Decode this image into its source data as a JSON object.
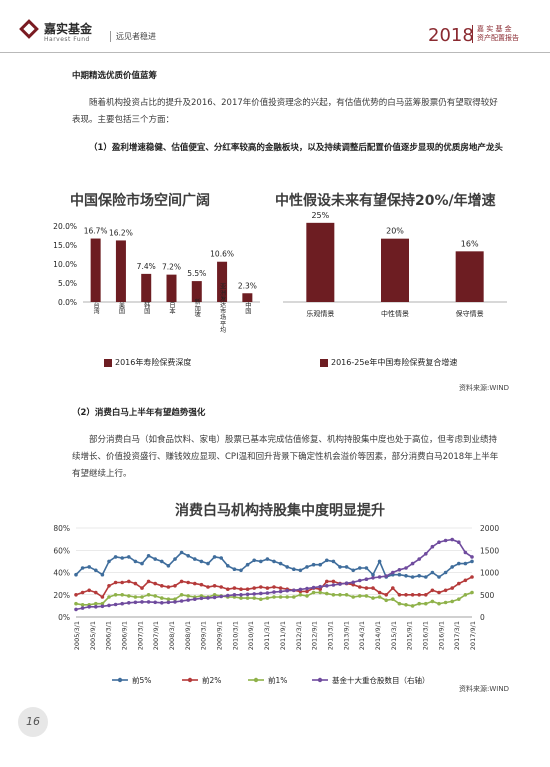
{
  "header": {
    "company_name": "嘉实基金",
    "company_en": "Harvest Fund",
    "slogan": "远见者稳进",
    "year": "2018",
    "report_title_line1": "嘉 实 基 金",
    "report_title_line2": "资产配置报告"
  },
  "body": {
    "section_heading": "中期精选优质价值蓝筹",
    "para1": "随着机构投资占比的提升及2016、2017年价值投资理念的兴起，有估值优势的白马蓝筹股票仍有望取得较好表现。主要包括三个方面：",
    "sub1": "（1）盈利增速稳健、估值便宜、分红率较高的金融板块，以及持续调整后配置价值逐步显现的优质房地产龙头",
    "source1": "资料来源:WIND",
    "sub2": "（2）消费白马上半年有望趋势强化",
    "para2": "部分消费白马（如食品饮料、家电）股票已基本完成估值修复、机构持股集中度也处于高位，但考虑到业绩持续增长、价值投资盛行、赚钱效应显现、CPI温和回升背景下确定性机会溢价等因素，部分消费白马2018年上半年有望继续上行。",
    "source2": "资料来源:WIND",
    "page_number": "16"
  },
  "chart_data": [
    {
      "type": "bar",
      "title": "中国保险市场空间广阔",
      "categories": [
        "台湾",
        "美国",
        "韩国",
        "日本",
        "新加坡",
        "亚洲发达市场平均",
        "中国"
      ],
      "values": [
        16.7,
        16.2,
        7.4,
        7.2,
        5.5,
        10.6,
        2.3
      ],
      "value_labels": [
        "16.7%",
        "16.2%",
        "7.4%",
        "7.2%",
        "5.5%",
        "10.6%",
        "2.3%"
      ],
      "y_ticks": [
        "0.0%",
        "5.0%",
        "10.0%",
        "15.0%",
        "20.0%"
      ],
      "ylim": [
        0,
        20
      ],
      "legend": "2016年寿险保费深度",
      "color": "#6d1d22"
    },
    {
      "type": "bar",
      "title": "中性假设未来有望保持20%/年增速",
      "categories": [
        "乐观情景",
        "中性情景",
        "保守情景"
      ],
      "values": [
        25,
        20,
        16
      ],
      "value_labels": [
        "25%",
        "20%",
        "16%"
      ],
      "ylim": [
        0,
        30
      ],
      "legend": "2016-25e年中国寿险保费复合增速",
      "color": "#6d1d22"
    },
    {
      "type": "line",
      "title": "消费白马机构持股集中度明显提升",
      "x_labels": [
        "2005/3/1",
        "2005/9/1",
        "2006/3/1",
        "2006/9/1",
        "2007/3/1",
        "2007/9/1",
        "2008/3/1",
        "2008/9/1",
        "2009/3/1",
        "2009/9/1",
        "2010/3/1",
        "2010/9/1",
        "2011/3/1",
        "2011/9/1",
        "2012/3/1",
        "2012/9/1",
        "2013/3/1",
        "2013/9/1",
        "2014/3/1",
        "2014/9/1",
        "2015/3/1",
        "2015/9/1",
        "2016/3/1",
        "2016/9/1",
        "2017/3/1",
        "2017/9/1"
      ],
      "y_left_ticks": [
        "0%",
        "20%",
        "40%",
        "60%",
        "80%"
      ],
      "ylim_left": [
        0,
        80
      ],
      "y_right_ticks": [
        "0",
        "500",
        "1000",
        "1500",
        "2000"
      ],
      "ylim_right": [
        0,
        2000
      ],
      "series": [
        {
          "name": "前5%",
          "axis": "left",
          "color": "#3f6d9c",
          "values": [
            38,
            44,
            45,
            42,
            38,
            50,
            54,
            53,
            54,
            50,
            48,
            55,
            52,
            50,
            46,
            52,
            58,
            55,
            52,
            50,
            48,
            54,
            53,
            46,
            43,
            42,
            47,
            51,
            50,
            52,
            50,
            48,
            45,
            43,
            42,
            45,
            47,
            47,
            51,
            50,
            45,
            45,
            42,
            44,
            44,
            38,
            50,
            36,
            38,
            38,
            37,
            36,
            37,
            36,
            40,
            36,
            40,
            45,
            48,
            48,
            50
          ]
        },
        {
          "name": "前2%",
          "axis": "left",
          "color": "#b53a3a",
          "values": [
            20,
            22,
            24,
            22,
            18,
            28,
            31,
            31,
            32,
            30,
            26,
            32,
            30,
            28,
            27,
            28,
            32,
            31,
            30,
            29,
            27,
            28,
            27,
            25,
            26,
            25,
            25,
            26,
            27,
            26,
            27,
            26,
            25,
            24,
            23,
            23,
            26,
            25,
            32,
            32,
            30,
            30,
            29,
            27,
            26,
            26,
            22,
            20,
            26,
            20,
            20,
            20,
            20,
            20,
            24,
            22,
            24,
            26,
            30,
            33,
            36
          ]
        },
        {
          "name": "前1%",
          "axis": "left",
          "color": "#8fb24a",
          "values": [
            12,
            11,
            11,
            12,
            12,
            18,
            20,
            20,
            19,
            18,
            18,
            20,
            19,
            17,
            16,
            16,
            20,
            19,
            18,
            19,
            18,
            20,
            19,
            18,
            18,
            17,
            17,
            17,
            16,
            17,
            18,
            18,
            18,
            18,
            20,
            19,
            22,
            22,
            21,
            20,
            20,
            20,
            18,
            19,
            19,
            17,
            18,
            15,
            16,
            12,
            11,
            10,
            12,
            12,
            14,
            12,
            13,
            14,
            16,
            20,
            22
          ]
        },
        {
          "name": "基金十大重仓股数目（右轴）",
          "axis": "right",
          "color": "#6f4b9e",
          "values": [
            170,
            200,
            230,
            230,
            240,
            260,
            280,
            300,
            320,
            330,
            340,
            340,
            330,
            320,
            330,
            340,
            360,
            380,
            400,
            420,
            430,
            440,
            460,
            480,
            500,
            500,
            510,
            520,
            530,
            540,
            560,
            570,
            590,
            600,
            620,
            640,
            660,
            680,
            700,
            720,
            740,
            760,
            780,
            820,
            850,
            880,
            900,
            920,
            1000,
            1060,
            1100,
            1200,
            1300,
            1420,
            1580,
            1680,
            1720,
            1740,
            1680,
            1450,
            1350
          ]
        }
      ]
    }
  ]
}
